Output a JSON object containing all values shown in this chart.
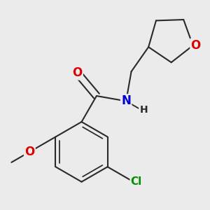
{
  "background_color": "#ebebeb",
  "bond_color": "#2a2a2a",
  "bond_width": 1.5,
  "atom_colors": {
    "O": "#dd0000",
    "N": "#0000cc",
    "Cl": "#009000",
    "C": "#2a2a2a",
    "H": "#2a2a2a"
  },
  "font_size_atom": 11,
  "figsize": [
    3.0,
    3.0
  ],
  "dpi": 100,
  "bl": 0.32
}
